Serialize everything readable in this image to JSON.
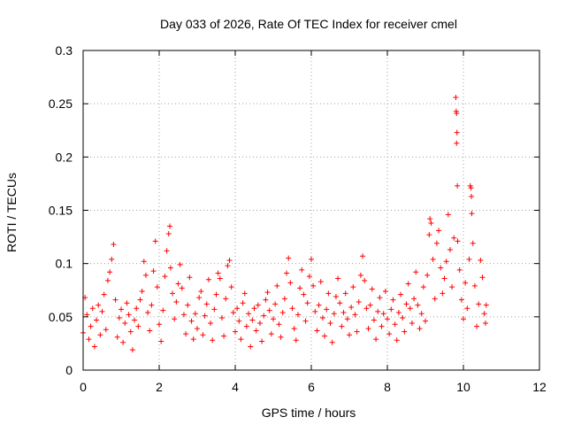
{
  "chart_data": {
    "type": "scatter",
    "title": "Day 033 of 2026, Rate Of TEC Index for receiver cmel",
    "xlabel": "GPS time / hours",
    "ylabel": "ROTI / TECUs",
    "xlim": [
      0,
      12
    ],
    "ylim": [
      0,
      0.3
    ],
    "x_ticks": [
      "0",
      "2",
      "4",
      "6",
      "8",
      "10",
      "12"
    ],
    "y_ticks": [
      "0",
      "0.05",
      "0.1",
      "0.15",
      "0.2",
      "0.25",
      "0.3"
    ],
    "grid": true,
    "marker": "+",
    "color": "#ff0000",
    "series": [
      {
        "name": "ROTI",
        "points": [
          [
            0.0,
            0.035
          ],
          [
            0.05,
            0.068
          ],
          [
            0.1,
            0.052
          ],
          [
            0.15,
            0.029
          ],
          [
            0.2,
            0.041
          ],
          [
            0.25,
            0.058
          ],
          [
            0.3,
            0.022
          ],
          [
            0.35,
            0.047
          ],
          [
            0.4,
            0.061
          ],
          [
            0.45,
            0.033
          ],
          [
            0.5,
            0.055
          ],
          [
            0.55,
            0.071
          ],
          [
            0.6,
            0.038
          ],
          [
            0.65,
            0.084
          ],
          [
            0.7,
            0.092
          ],
          [
            0.75,
            0.104
          ],
          [
            0.8,
            0.118
          ],
          [
            0.85,
            0.066
          ],
          [
            0.9,
            0.031
          ],
          [
            0.95,
            0.049
          ],
          [
            1.0,
            0.057
          ],
          [
            1.05,
            0.026
          ],
          [
            1.1,
            0.044
          ],
          [
            1.15,
            0.063
          ],
          [
            1.2,
            0.052
          ],
          [
            1.25,
            0.036
          ],
          [
            1.3,
            0.019
          ],
          [
            1.35,
            0.047
          ],
          [
            1.4,
            0.058
          ],
          [
            1.45,
            0.041
          ],
          [
            1.5,
            0.066
          ],
          [
            1.55,
            0.074
          ],
          [
            1.6,
            0.102
          ],
          [
            1.65,
            0.089
          ],
          [
            1.7,
            0.054
          ],
          [
            1.75,
            0.037
          ],
          [
            1.8,
            0.061
          ],
          [
            1.85,
            0.093
          ],
          [
            1.9,
            0.121
          ],
          [
            1.95,
            0.078
          ],
          [
            2.0,
            0.043
          ],
          [
            2.05,
            0.027
          ],
          [
            2.1,
            0.056
          ],
          [
            2.15,
            0.088
          ],
          [
            2.2,
            0.112
          ],
          [
            2.25,
            0.128
          ],
          [
            2.28,
            0.135
          ],
          [
            2.3,
            0.096
          ],
          [
            2.35,
            0.072
          ],
          [
            2.4,
            0.048
          ],
          [
            2.45,
            0.064
          ],
          [
            2.5,
            0.081
          ],
          [
            2.55,
            0.099
          ],
          [
            2.6,
            0.077
          ],
          [
            2.65,
            0.052
          ],
          [
            2.7,
            0.034
          ],
          [
            2.75,
            0.061
          ],
          [
            2.8,
            0.087
          ],
          [
            2.85,
            0.046
          ],
          [
            2.9,
            0.029
          ],
          [
            2.95,
            0.053
          ],
          [
            3.0,
            0.039
          ],
          [
            3.05,
            0.068
          ],
          [
            3.1,
            0.074
          ],
          [
            3.15,
            0.033
          ],
          [
            3.2,
            0.051
          ],
          [
            3.25,
            0.062
          ],
          [
            3.3,
            0.085
          ],
          [
            3.35,
            0.044
          ],
          [
            3.4,
            0.028
          ],
          [
            3.45,
            0.057
          ],
          [
            3.5,
            0.071
          ],
          [
            3.55,
            0.091
          ],
          [
            3.6,
            0.086
          ],
          [
            3.65,
            0.049
          ],
          [
            3.7,
            0.032
          ],
          [
            3.75,
            0.067
          ],
          [
            3.8,
            0.098
          ],
          [
            3.85,
            0.103
          ],
          [
            3.9,
            0.078
          ],
          [
            3.95,
            0.054
          ],
          [
            4.0,
            0.036
          ],
          [
            4.05,
            0.058
          ],
          [
            4.1,
            0.046
          ],
          [
            4.15,
            0.029
          ],
          [
            4.2,
            0.063
          ],
          [
            4.25,
            0.072
          ],
          [
            4.3,
            0.041
          ],
          [
            4.35,
            0.053
          ],
          [
            4.4,
            0.022
          ],
          [
            4.45,
            0.047
          ],
          [
            4.5,
            0.058
          ],
          [
            4.55,
            0.037
          ],
          [
            4.6,
            0.061
          ],
          [
            4.65,
            0.044
          ],
          [
            4.7,
            0.027
          ],
          [
            4.75,
            0.051
          ],
          [
            4.8,
            0.066
          ],
          [
            4.85,
            0.073
          ],
          [
            4.9,
            0.056
          ],
          [
            4.95,
            0.034
          ],
          [
            5.0,
            0.048
          ],
          [
            5.05,
            0.062
          ],
          [
            5.1,
            0.079
          ],
          [
            5.15,
            0.043
          ],
          [
            5.2,
            0.031
          ],
          [
            5.25,
            0.054
          ],
          [
            5.3,
            0.067
          ],
          [
            5.35,
            0.091
          ],
          [
            5.4,
            0.105
          ],
          [
            5.45,
            0.082
          ],
          [
            5.5,
            0.058
          ],
          [
            5.55,
            0.039
          ],
          [
            5.6,
            0.028
          ],
          [
            5.65,
            0.052
          ],
          [
            5.7,
            0.077
          ],
          [
            5.75,
            0.094
          ],
          [
            5.8,
            0.071
          ],
          [
            5.85,
            0.046
          ],
          [
            5.9,
            0.063
          ],
          [
            5.95,
            0.088
          ],
          [
            6.0,
            0.104
          ],
          [
            6.05,
            0.079
          ],
          [
            6.1,
            0.055
          ],
          [
            6.15,
            0.037
          ],
          [
            6.2,
            0.061
          ],
          [
            6.25,
            0.083
          ],
          [
            6.3,
            0.049
          ],
          [
            6.35,
            0.032
          ],
          [
            6.4,
            0.057
          ],
          [
            6.45,
            0.072
          ],
          [
            6.5,
            0.044
          ],
          [
            6.55,
            0.026
          ],
          [
            6.6,
            0.053
          ],
          [
            6.65,
            0.069
          ],
          [
            6.7,
            0.086
          ],
          [
            6.75,
            0.063
          ],
          [
            6.8,
            0.041
          ],
          [
            6.85,
            0.054
          ],
          [
            6.9,
            0.072
          ],
          [
            6.95,
            0.048
          ],
          [
            7.0,
            0.033
          ],
          [
            7.05,
            0.059
          ],
          [
            7.1,
            0.078
          ],
          [
            7.15,
            0.052
          ],
          [
            7.2,
            0.036
          ],
          [
            7.25,
            0.064
          ],
          [
            7.3,
            0.089
          ],
          [
            7.35,
            0.107
          ],
          [
            7.4,
            0.084
          ],
          [
            7.45,
            0.058
          ],
          [
            7.5,
            0.039
          ],
          [
            7.55,
            0.061
          ],
          [
            7.6,
            0.076
          ],
          [
            7.65,
            0.047
          ],
          [
            7.7,
            0.029
          ],
          [
            7.75,
            0.055
          ],
          [
            7.8,
            0.068
          ],
          [
            7.85,
            0.041
          ],
          [
            7.9,
            0.053
          ],
          [
            7.95,
            0.074
          ],
          [
            8.0,
            0.048
          ],
          [
            8.05,
            0.034
          ],
          [
            8.1,
            0.057
          ],
          [
            8.15,
            0.066
          ],
          [
            8.2,
            0.043
          ],
          [
            8.25,
            0.028
          ],
          [
            8.3,
            0.054
          ],
          [
            8.35,
            0.071
          ],
          [
            8.4,
            0.049
          ],
          [
            8.45,
            0.036
          ],
          [
            8.5,
            0.062
          ],
          [
            8.55,
            0.081
          ],
          [
            8.6,
            0.058
          ],
          [
            8.65,
            0.044
          ],
          [
            8.7,
            0.067
          ],
          [
            8.75,
            0.092
          ],
          [
            8.8,
            0.061
          ],
          [
            8.85,
            0.039
          ],
          [
            8.9,
            0.053
          ],
          [
            8.95,
            0.078
          ],
          [
            9.0,
            0.046
          ],
          [
            9.05,
            0.089
          ],
          [
            9.1,
            0.127
          ],
          [
            9.12,
            0.142
          ],
          [
            9.15,
            0.138
          ],
          [
            9.2,
            0.104
          ],
          [
            9.25,
            0.067
          ],
          [
            9.3,
            0.119
          ],
          [
            9.35,
            0.131
          ],
          [
            9.4,
            0.096
          ],
          [
            9.45,
            0.072
          ],
          [
            9.5,
            0.086
          ],
          [
            9.55,
            0.102
          ],
          [
            9.6,
            0.146
          ],
          [
            9.65,
            0.113
          ],
          [
            9.7,
            0.078
          ],
          [
            9.75,
            0.124
          ],
          [
            9.8,
            0.256
          ],
          [
            9.81,
            0.243
          ],
          [
            9.82,
            0.241
          ],
          [
            9.83,
            0.223
          ],
          [
            9.82,
            0.213
          ],
          [
            9.84,
            0.173
          ],
          [
            9.85,
            0.121
          ],
          [
            9.9,
            0.094
          ],
          [
            9.95,
            0.066
          ],
          [
            10.0,
            0.048
          ],
          [
            10.05,
            0.082
          ],
          [
            10.1,
            0.058
          ],
          [
            10.15,
            0.104
          ],
          [
            10.18,
            0.173
          ],
          [
            10.2,
            0.171
          ],
          [
            10.21,
            0.163
          ],
          [
            10.22,
            0.147
          ],
          [
            10.25,
            0.119
          ],
          [
            10.3,
            0.079
          ],
          [
            10.35,
            0.041
          ],
          [
            10.4,
            0.062
          ],
          [
            10.45,
            0.103
          ],
          [
            10.5,
            0.087
          ],
          [
            10.55,
            0.053
          ],
          [
            10.58,
            0.044
          ],
          [
            10.6,
            0.061
          ]
        ]
      }
    ]
  }
}
